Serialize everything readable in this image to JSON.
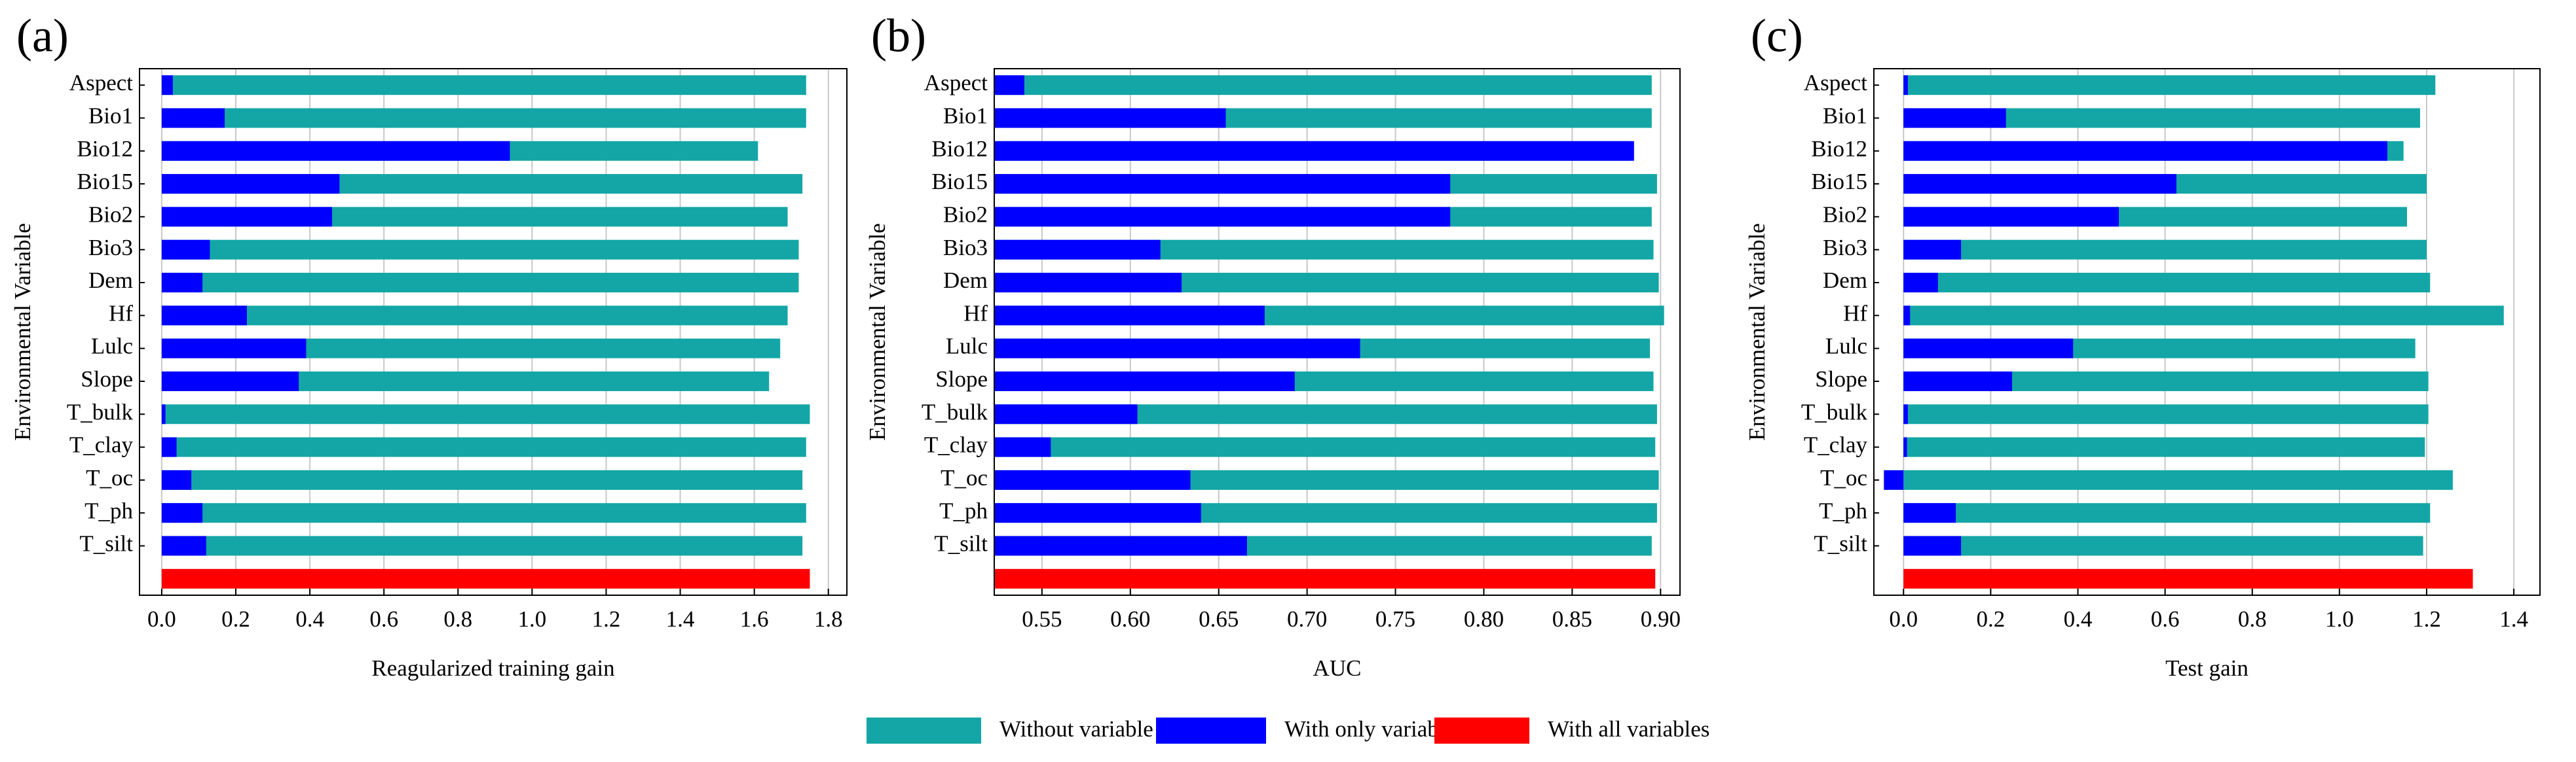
{
  "legend": [
    {
      "name": "Without variable",
      "color": "#14a6a6"
    },
    {
      "name": "With only variable",
      "color": "#0000ff"
    },
    {
      "name": "With all variables",
      "color": "#ff0000"
    }
  ],
  "chart_data": [
    {
      "type": "bar",
      "panel": "(a)",
      "xlabel": "Reagularized training gain",
      "ylabel": "Environmental Variable",
      "categories": [
        "Aspect",
        "Bio1",
        "Bio12",
        "Bio15",
        "Bio2",
        "Bio3",
        "Dem",
        "Hf",
        "Lulc",
        "Slope",
        "T_bulk",
        "T_clay",
        "T_oc",
        "T_ph",
        "T_silt"
      ],
      "series": [
        {
          "values": [
            1.74,
            1.74,
            1.61,
            1.73,
            1.69,
            1.72,
            1.72,
            1.69,
            1.67,
            1.64,
            1.75,
            1.74,
            1.73,
            1.74,
            1.73
          ]
        },
        {
          "values": [
            0.03,
            0.17,
            0.94,
            0.48,
            0.46,
            0.13,
            0.11,
            0.23,
            0.39,
            0.37,
            0.01,
            0.04,
            0.08,
            0.11,
            0.12
          ]
        }
      ],
      "all_variables": 1.75,
      "xlim": [
        -0.06,
        1.85
      ],
      "xticks": [
        {
          "value": 0,
          "label": "0.0"
        },
        0.2,
        0.4,
        0.6,
        0.8,
        {
          "value": 1,
          "label": "1.0"
        },
        1.2,
        1.4,
        1.6,
        1.8
      ],
      "grid": true
    },
    {
      "type": "bar",
      "panel": "(b)",
      "xlabel": "AUC",
      "ylabel": "Environmental Variable",
      "categories": [
        "Aspect",
        "Bio1",
        "Bio12",
        "Bio15",
        "Bio2",
        "Bio3",
        "Dem",
        "Hf",
        "Lulc",
        "Slope",
        "T_bulk",
        "T_clay",
        "T_oc",
        "T_ph",
        "T_silt"
      ],
      "series": [
        {
          "values": [
            0.895,
            0.895,
            0.883,
            0.898,
            0.895,
            0.896,
            0.899,
            0.902,
            0.894,
            0.896,
            0.898,
            0.897,
            0.899,
            0.898,
            0.895
          ]
        },
        {
          "values": [
            0.54,
            0.654,
            0.885,
            0.781,
            0.781,
            0.617,
            0.629,
            0.676,
            0.73,
            0.693,
            0.604,
            0.555,
            0.634,
            0.64,
            0.666
          ]
        }
      ],
      "all_variables": 0.897,
      "xlim": [
        0.523,
        0.911
      ],
      "xticks": [
        0.55,
        {
          "value": 0.6,
          "label": "0.60"
        },
        0.65,
        {
          "value": 0.7,
          "label": "0.70"
        },
        0.75,
        {
          "value": 0.8,
          "label": "0.80"
        },
        0.85,
        {
          "value": 0.9,
          "label": "0.90"
        }
      ],
      "grid": true
    },
    {
      "type": "bar",
      "panel": "(c)",
      "xlabel": "Test gain",
      "ylabel": "Environmental Variable",
      "categories": [
        "Aspect",
        "Bio1",
        "Bio12",
        "Bio15",
        "Bio2",
        "Bio3",
        "Dem",
        "Hf",
        "Lulc",
        "Slope",
        "T_bulk",
        "T_clay",
        "T_oc",
        "T_ph",
        "T_silt"
      ],
      "series": [
        {
          "values": [
            1.22,
            1.185,
            1.147,
            1.2,
            1.155,
            1.2,
            1.208,
            1.377,
            1.174,
            1.204,
            1.204,
            1.196,
            1.26,
            1.208,
            1.192
          ]
        },
        {
          "values": [
            0.01,
            0.235,
            1.11,
            0.626,
            0.494,
            0.132,
            0.079,
            0.015,
            0.389,
            0.249,
            0.01,
            0.008,
            -0.045,
            0.12,
            0.132
          ]
        }
      ],
      "all_variables": 1.306,
      "xlim": [
        -0.068,
        1.46
      ],
      "xticks": [
        {
          "value": 0,
          "label": "0.0"
        },
        0.2,
        0.4,
        0.6,
        0.8,
        {
          "value": 1,
          "label": "1.0"
        },
        1.2,
        1.4
      ],
      "grid": true
    }
  ]
}
